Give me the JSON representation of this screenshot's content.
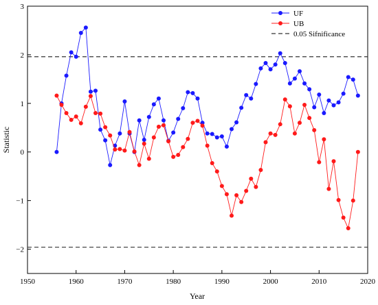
{
  "chart_data": {
    "type": "line",
    "xlabel": "Year",
    "ylabel": "Statistic",
    "xlim": [
      1950,
      2020
    ],
    "ylim": [
      -2.5,
      3
    ],
    "xticks": [
      1950,
      1960,
      1970,
      1980,
      1990,
      2000,
      2010,
      2020
    ],
    "yticks": [
      -2,
      -1,
      0,
      1,
      2,
      3
    ],
    "x": [
      1956,
      1957,
      1958,
      1959,
      1960,
      1961,
      1962,
      1963,
      1964,
      1965,
      1966,
      1967,
      1968,
      1969,
      1970,
      1971,
      1972,
      1973,
      1974,
      1975,
      1976,
      1977,
      1978,
      1979,
      1980,
      1981,
      1982,
      1983,
      1984,
      1985,
      1986,
      1987,
      1988,
      1989,
      1990,
      1991,
      1992,
      1993,
      1994,
      1995,
      1996,
      1997,
      1998,
      1999,
      2000,
      2001,
      2002,
      2003,
      2004,
      2005,
      2006,
      2007,
      2008,
      2009,
      2010,
      2011,
      2012,
      2013,
      2014,
      2015,
      2016,
      2017,
      2018
    ],
    "series": [
      {
        "name": "UF",
        "color": "#1a1aff",
        "values": [
          0.0,
          1.0,
          1.57,
          2.05,
          1.96,
          2.45,
          2.56,
          1.24,
          1.26,
          0.46,
          0.24,
          -0.27,
          0.13,
          0.38,
          1.04,
          0.38,
          0.0,
          0.65,
          0.25,
          0.72,
          0.98,
          1.1,
          0.65,
          0.23,
          0.4,
          0.68,
          0.9,
          1.23,
          1.21,
          1.1,
          0.6,
          0.38,
          0.37,
          0.3,
          0.32,
          0.11,
          0.47,
          0.61,
          0.91,
          1.17,
          1.1,
          1.4,
          1.72,
          1.83,
          1.7,
          1.8,
          2.03,
          1.83,
          1.41,
          1.51,
          1.66,
          1.41,
          1.29,
          0.92,
          1.18,
          0.8,
          1.06,
          0.96,
          1.02,
          1.2,
          1.54,
          1.49,
          1.16
        ]
      },
      {
        "name": "UB",
        "color": "#ff1a1a",
        "values": [
          1.16,
          0.97,
          0.8,
          0.66,
          0.73,
          0.59,
          0.93,
          1.15,
          0.8,
          0.79,
          0.51,
          0.34,
          0.05,
          0.06,
          0.03,
          0.41,
          0.01,
          -0.27,
          0.17,
          -0.14,
          0.3,
          0.52,
          0.55,
          0.22,
          -0.1,
          -0.06,
          0.1,
          0.27,
          0.6,
          0.64,
          0.54,
          0.13,
          -0.23,
          -0.4,
          -0.7,
          -0.87,
          -1.31,
          -0.89,
          -1.03,
          -0.8,
          -0.55,
          -0.72,
          -0.37,
          0.2,
          0.38,
          0.35,
          0.57,
          1.08,
          0.94,
          0.38,
          0.6,
          0.97,
          0.7,
          0.45,
          -0.21,
          0.26,
          -0.76,
          -0.19,
          -0.99,
          -1.35,
          -1.57,
          -1.0,
          0.0
        ]
      }
    ],
    "reference_lines": [
      {
        "name": "0.05 Sifnificance",
        "values": [
          1.96,
          -1.96
        ],
        "style": "dashed",
        "color": "#333333"
      }
    ],
    "legend_position": "top-right",
    "grid": false
  }
}
